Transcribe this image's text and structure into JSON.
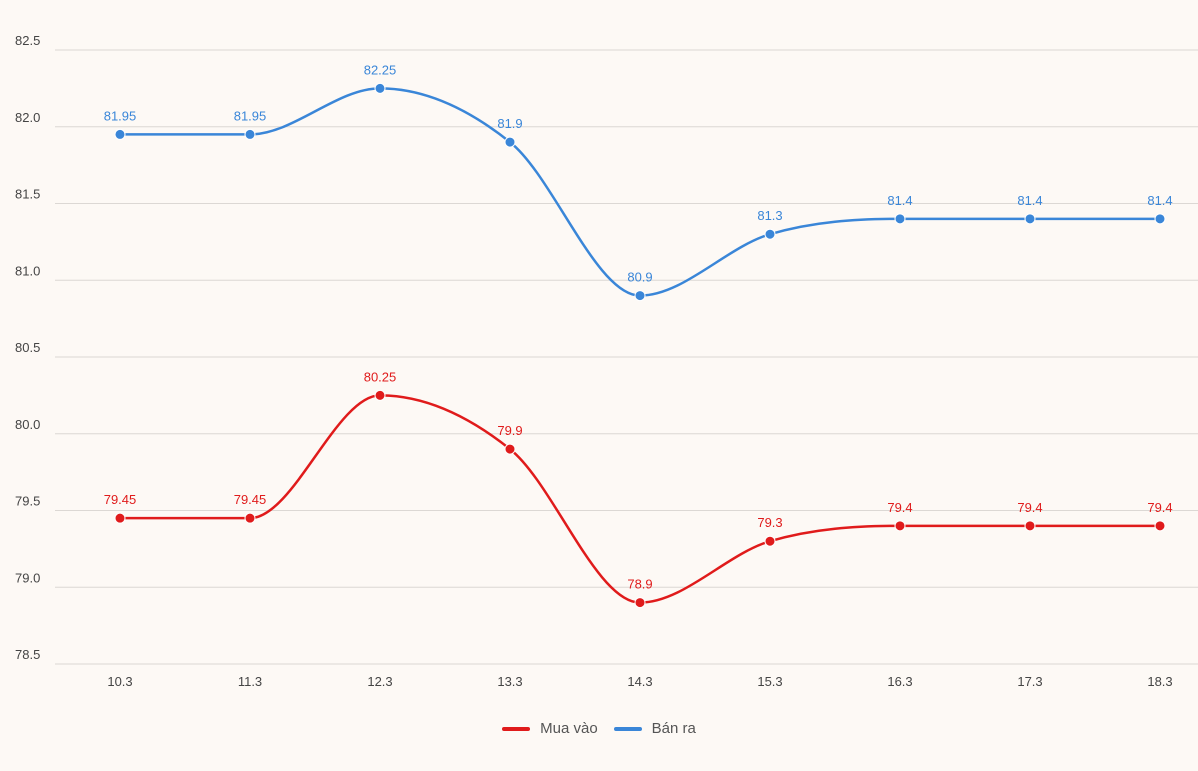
{
  "chart_data": {
    "type": "line",
    "categories": [
      "10.3",
      "11.3",
      "12.3",
      "13.3",
      "14.3",
      "15.3",
      "16.3",
      "17.3",
      "18.3"
    ],
    "ylim": [
      78.5,
      82.5
    ],
    "yticks": [
      "82.5",
      "82.0",
      "81.5",
      "81.0",
      "80.5",
      "80.0",
      "79.5",
      "79.0",
      "78.5"
    ],
    "grid": true,
    "legend_position": "bottom-center",
    "series": [
      {
        "name": "Mua vào",
        "color": "#e01b1b",
        "values": [
          79.45,
          79.45,
          80.25,
          79.9,
          78.9,
          79.3,
          79.4,
          79.4,
          79.4
        ],
        "labels": [
          "79.45",
          "79.45",
          "80.25",
          "79.9",
          "78.9",
          "79.3",
          "79.4",
          "79.4",
          "79.4"
        ]
      },
      {
        "name": "Bán ra",
        "color": "#3a86d8",
        "values": [
          81.95,
          81.95,
          82.25,
          81.9,
          80.9,
          81.3,
          81.4,
          81.4,
          81.4
        ],
        "labels": [
          "81.95",
          "81.95",
          "82.25",
          "81.9",
          "80.9",
          "81.3",
          "81.4",
          "81.4",
          "81.4"
        ]
      }
    ]
  }
}
